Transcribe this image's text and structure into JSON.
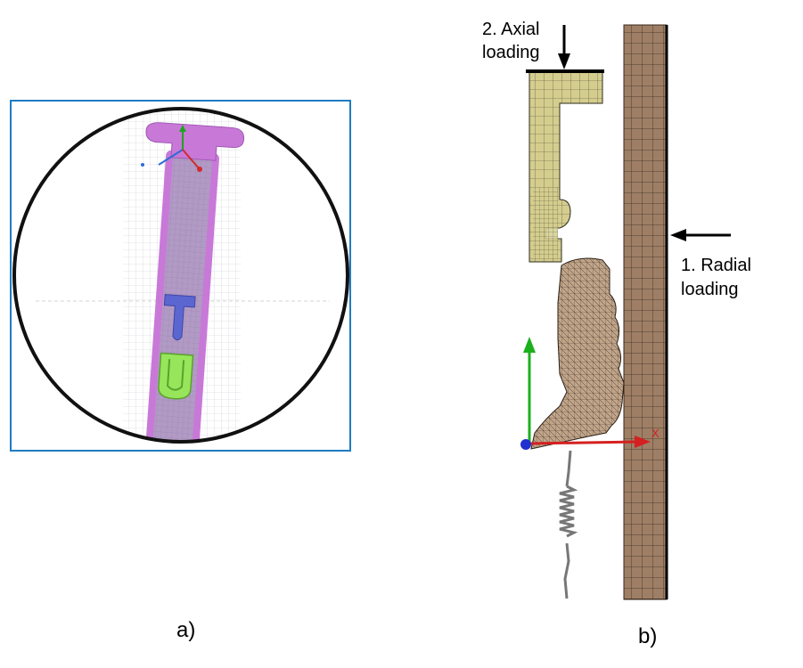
{
  "panel_a": {
    "caption": "a)",
    "frame_color": "#1f7cc2",
    "rod_color": "#c879d8",
    "rod_inner_color": "#9c82b8",
    "clip_color": "#5b66d0",
    "spring_color": "#97e55a",
    "axis_icon": "triad-axis-icon"
  },
  "panel_b": {
    "caption": "b)",
    "axial_label_line1": "2. Axial",
    "axial_label_line2": "loading",
    "radial_label_line1": "1. Radial",
    "radial_label_line2": "loading",
    "axis_x_label": "X",
    "upper_part_color": "#d4cd8e",
    "lower_part_color": "#c0a58a",
    "wall_color": "#9e7f66",
    "axis_x_color": "#d42020",
    "axis_y_color": "#1cb01c",
    "axis_origin_color": "#2030d0"
  }
}
